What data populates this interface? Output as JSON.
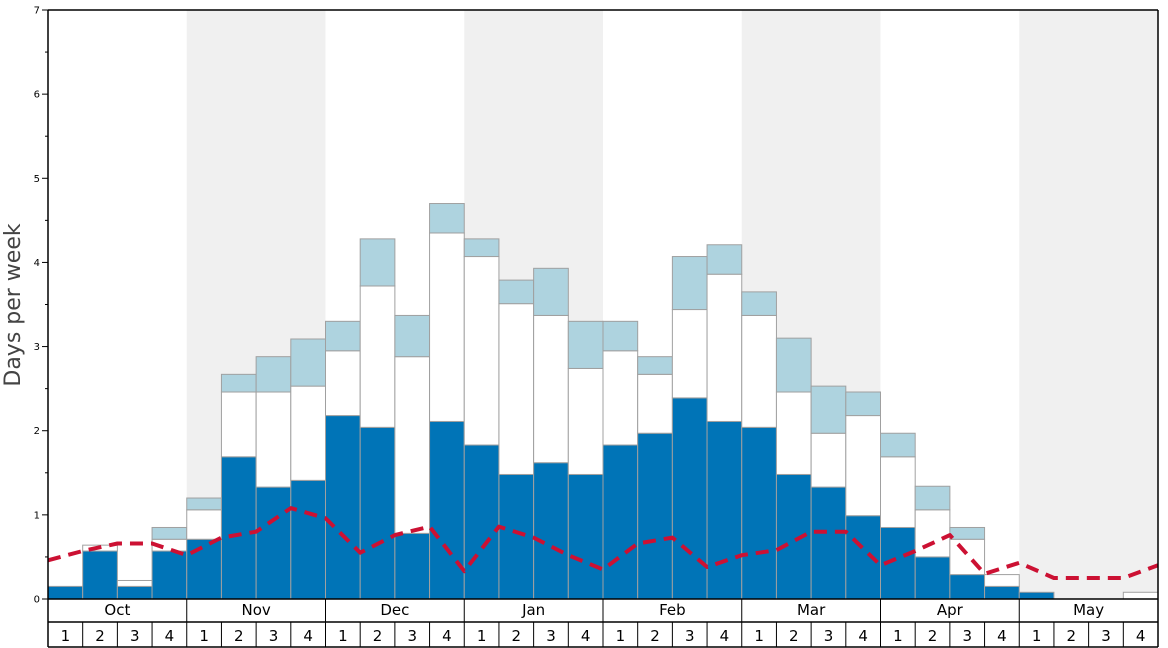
{
  "chart_data": {
    "type": "bar",
    "stacked": true,
    "ylabel": "Days per week",
    "ylim": [
      0,
      7
    ],
    "yticks": [
      "0",
      "1",
      "2",
      "3",
      "4",
      "5",
      "6",
      "7"
    ],
    "months": [
      "Oct",
      "Nov",
      "Dec",
      "Jan",
      "Feb",
      "Mar",
      "Apr",
      "May"
    ],
    "weeks": [
      "1",
      "2",
      "3",
      "4"
    ],
    "shaded_months": [
      "Nov",
      "Jan",
      "Mar",
      "May"
    ],
    "series": [
      {
        "key": "dark",
        "color": "#0074b7",
        "values": [
          0.15,
          0.57,
          0.15,
          0.57,
          0.71,
          1.69,
          1.33,
          1.41,
          2.18,
          2.04,
          0.78,
          2.11,
          1.83,
          1.48,
          1.62,
          1.48,
          1.83,
          1.97,
          2.39,
          2.11,
          2.04,
          1.48,
          1.33,
          0.99,
          0.85,
          0.5,
          0.29,
          0.15,
          0.08,
          0.0,
          0.0,
          0.0
        ]
      },
      {
        "key": "white",
        "color": "#ffffff",
        "values": [
          0.0,
          0.07,
          0.07,
          0.14,
          0.35,
          0.77,
          1.13,
          1.12,
          0.77,
          1.68,
          2.1,
          2.24,
          2.24,
          2.03,
          1.75,
          1.26,
          1.12,
          0.7,
          1.05,
          1.75,
          1.33,
          0.98,
          0.64,
          1.19,
          0.84,
          0.56,
          0.42,
          0.14,
          0.0,
          0.0,
          0.0,
          0.08
        ]
      },
      {
        "key": "light",
        "color": "#aed3df",
        "values": [
          0.0,
          0.0,
          0.0,
          0.14,
          0.14,
          0.21,
          0.42,
          0.56,
          0.35,
          0.56,
          0.49,
          0.35,
          0.21,
          0.28,
          0.56,
          0.56,
          0.35,
          0.21,
          0.63,
          0.35,
          0.28,
          0.64,
          0.56,
          0.28,
          0.28,
          0.28,
          0.14,
          0.0,
          0.0,
          0.0,
          0.0,
          0.0
        ]
      }
    ],
    "trend_line": {
      "color": "#cc1133",
      "values": [
        0.46,
        0.57,
        0.66,
        0.66,
        0.52,
        0.73,
        0.8,
        1.08,
        0.96,
        0.55,
        0.76,
        0.86,
        0.33,
        0.86,
        0.73,
        0.52,
        0.35,
        0.66,
        0.73,
        0.38,
        0.52,
        0.58,
        0.8,
        0.8,
        0.4,
        0.57,
        0.76,
        0.3,
        0.43,
        0.25,
        0.25,
        0.25,
        0.4
      ]
    }
  }
}
